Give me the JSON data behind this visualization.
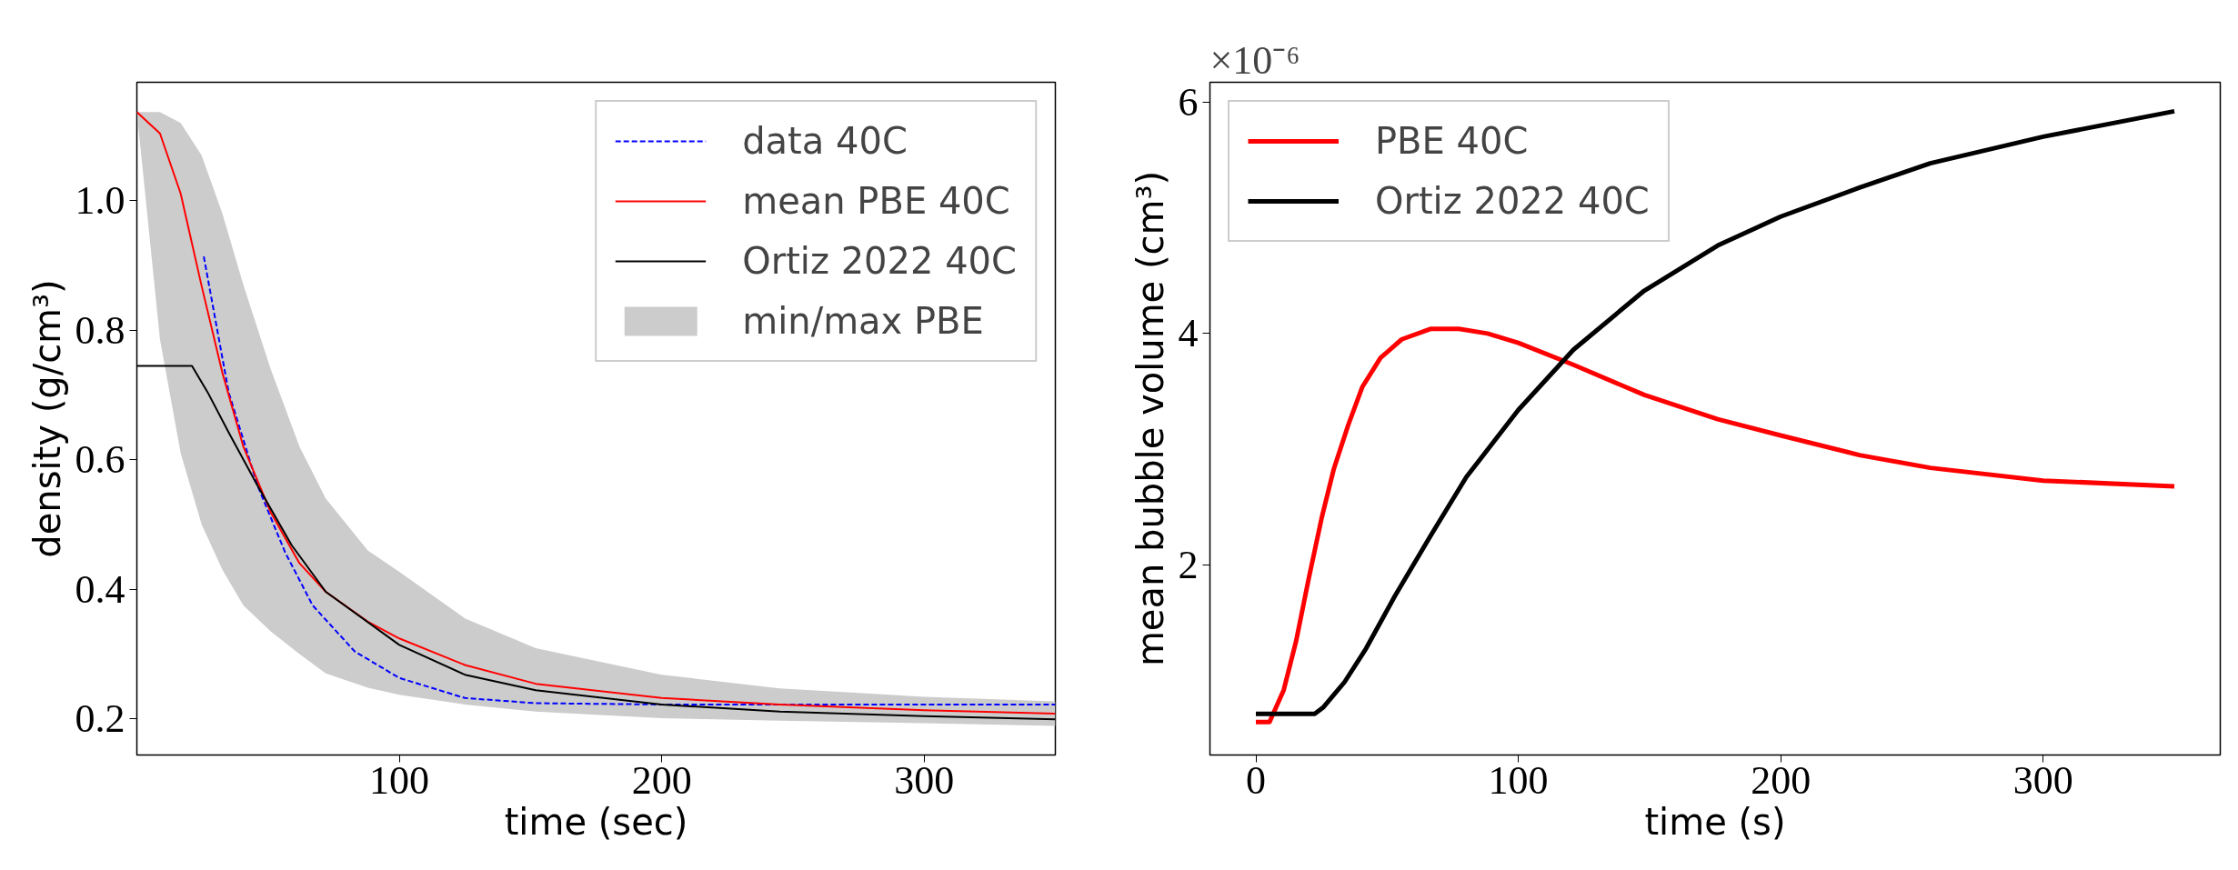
{
  "chart_data": [
    {
      "type": "line",
      "xlabel": "time (sec)",
      "ylabel": "density (g/cm³)",
      "xlim": [
        0,
        350
      ],
      "ylim": [
        0.144,
        1.183
      ],
      "xticks": [
        100,
        200,
        300
      ],
      "yticks": [
        0.2,
        0.4,
        0.6,
        0.8,
        {
          "value": 1.0,
          "label": "1.0"
        }
      ],
      "grid": false,
      "legend": "top right",
      "series": [
        {
          "name": "data 40C",
          "color": "#0000ff",
          "line_style": "dashed",
          "x": [
            25.5,
            35,
            46,
            56.5,
            67,
            83,
            100,
            125,
            152,
            200,
            350
          ],
          "values": [
            0.914,
            0.704,
            0.56,
            0.457,
            0.375,
            0.304,
            0.263,
            0.232,
            0.224,
            0.222,
            0.222
          ]
        },
        {
          "name": "mean PBE 40C",
          "color": "#ff0000",
          "x": [
            0,
            8.8,
            16.7,
            24.7,
            32.6,
            40.6,
            51,
            62,
            72,
            88,
            100,
            125,
            152,
            200,
            245,
            300,
            350
          ],
          "values": [
            1.137,
            1.104,
            1.011,
            0.868,
            0.734,
            0.62,
            0.519,
            0.44,
            0.396,
            0.35,
            0.324,
            0.283,
            0.254,
            0.232,
            0.222,
            0.213,
            0.208
          ],
          "lower": [
            1.137,
            0.786,
            0.61,
            0.5,
            0.43,
            0.375,
            0.335,
            0.3,
            0.27,
            0.248,
            0.237,
            0.222,
            0.211,
            0.201,
            0.197,
            0.193,
            0.189
          ],
          "upper": [
            1.137,
            1.137,
            1.12,
            1.07,
            0.98,
            0.87,
            0.74,
            0.62,
            0.54,
            0.46,
            0.427,
            0.355,
            0.309,
            0.268,
            0.247,
            0.234,
            0.227
          ]
        },
        {
          "name": "Ortiz 2022 40C",
          "color": "#000000",
          "x": [
            0,
            21,
            27,
            35,
            46,
            59,
            72,
            100,
            125,
            152,
            200,
            245,
            300,
            350
          ],
          "values": [
            0.745,
            0.745,
            0.704,
            0.642,
            0.56,
            0.468,
            0.396,
            0.314,
            0.268,
            0.244,
            0.222,
            0.211,
            0.204,
            0.199
          ]
        },
        {
          "name": "min/max PBE",
          "type": "area",
          "color": "#cccccc"
        }
      ]
    },
    {
      "type": "line",
      "xlabel": "time (s)",
      "ylabel": "mean bubble volume (cm³)",
      "annotations": [
        "×10⁻⁶"
      ],
      "xlim": [
        -17.5,
        367.5
      ],
      "ylim": [
        0.36,
        6.17
      ],
      "xticks": [
        0,
        100,
        200,
        300
      ],
      "yticks": [
        2,
        4,
        6
      ],
      "grid": false,
      "legend": "top left",
      "series": [
        {
          "name": "PBE 40C",
          "color": "#ff0000",
          "x": [
            0,
            5.2,
            10.6,
            15.3,
            20.2,
            25.1,
            29.7,
            35.2,
            40.6,
            47.5,
            55.6,
            66.5,
            77.4,
            88.3,
            100,
            121,
            148,
            176,
            200,
            230,
            257,
            300,
            350
          ],
          "values": [
            0.645,
            0.645,
            0.92,
            1.34,
            1.89,
            2.41,
            2.83,
            3.21,
            3.54,
            3.79,
            3.95,
            4.04,
            4.04,
            4.0,
            3.92,
            3.73,
            3.47,
            3.26,
            3.12,
            2.95,
            2.84,
            2.73,
            2.68
          ]
        },
        {
          "name": "Ortiz 2022 40C",
          "color": "#000000",
          "x": [
            0,
            22.4,
            25.6,
            33.8,
            42,
            52.9,
            66.5,
            80.2,
            100,
            121,
            148,
            176,
            200,
            230,
            257,
            300,
            350
          ],
          "values": [
            0.716,
            0.716,
            0.77,
            0.99,
            1.28,
            1.73,
            2.25,
            2.76,
            3.34,
            3.86,
            4.37,
            4.76,
            5.01,
            5.26,
            5.47,
            5.7,
            5.92
          ]
        }
      ]
    }
  ]
}
